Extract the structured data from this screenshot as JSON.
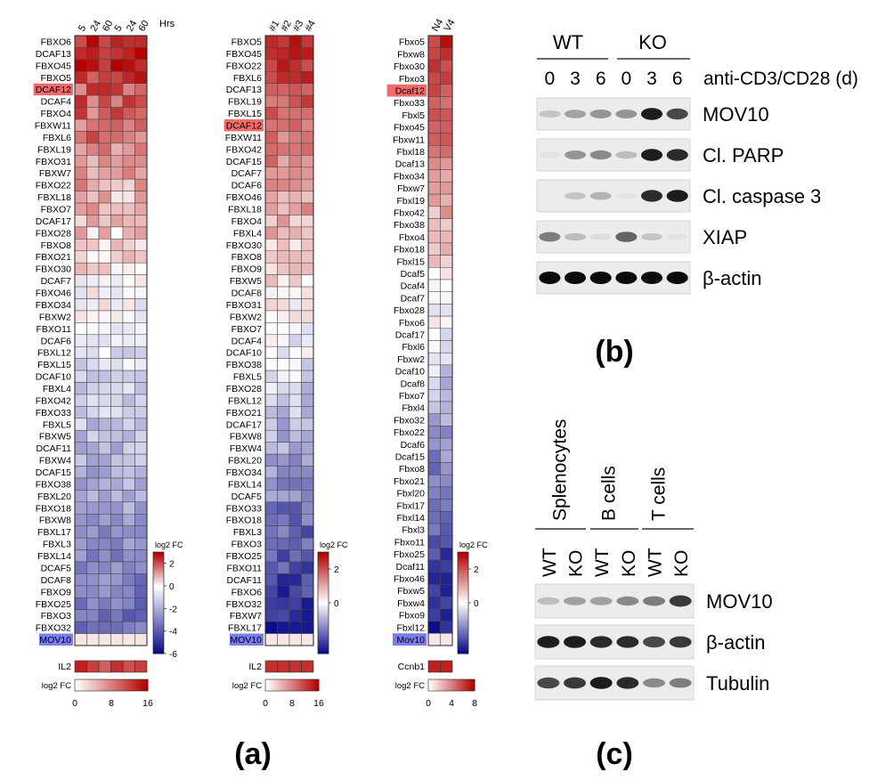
{
  "panel_labels": {
    "a": "(a)",
    "b": "(b)",
    "c": "(c)"
  },
  "colors": {
    "red": "#b30000",
    "blue": "#0d0d8a",
    "white": "#ffffff",
    "highlight_red": "#f26b6b",
    "highlight_blue": "#7b7cf0"
  },
  "chart_data": [
    {
      "type": "heatmap",
      "panel": "a1",
      "col_labels": [
        "5",
        "24",
        "60",
        "5",
        "24",
        "60"
      ],
      "col_unit": "Hrs",
      "rows": [
        "FBXO6",
        "DCAF13",
        "FBXO45",
        "FBXO5",
        "DCAF12",
        "DCAF4",
        "FBXO4",
        "FBXW11",
        "FBXL6",
        "FBXL19",
        "FBXO31",
        "FBXW7",
        "FBXO22",
        "FBXL18",
        "FBXO7",
        "DCAF17",
        "FBXO28",
        "FBXO8",
        "FBXO21",
        "FBXO30",
        "DCAF7",
        "FBXO46",
        "FBXO34",
        "FBXW2",
        "FBXO11",
        "DCAF6",
        "FBXL12",
        "FBXL15",
        "DCAF10",
        "FBXL4",
        "FBXO42",
        "FBXO33",
        "FBXL5",
        "FBXW5",
        "DCAF11",
        "FBXW4",
        "DCAF15",
        "FBXO38",
        "FBXL20",
        "FBXO18",
        "FBXW8",
        "FBXL17",
        "FBXL3",
        "FBXL14",
        "DCAF5",
        "DCAF8",
        "FBXO9",
        "FBXO25",
        "FBXO3",
        "FBXO32",
        "MOV10"
      ],
      "highlight": {
        "DCAF12": "red",
        "MOV10": "blue"
      },
      "scale": {
        "label": "log2 FC",
        "min": -6,
        "max": 3,
        "ticks": [
          "2",
          "0",
          "-2",
          "-4",
          "-6"
        ]
      },
      "il2": {
        "label": "IL2",
        "values": [
          14,
          12,
          10,
          13,
          11,
          12
        ]
      },
      "il2_scale": {
        "label": "log2 FC",
        "min": 0,
        "max": 16,
        "ticks": [
          "0",
          "8",
          "16"
        ]
      }
    },
    {
      "type": "heatmap",
      "panel": "a2",
      "col_labels": [
        "#1",
        "#2",
        "#3",
        "#4"
      ],
      "rows": [
        "FBXO5",
        "FBXO45",
        "FBXO22",
        "FBXL6",
        "DCAF13",
        "FBXL19",
        "FBXL15",
        "DCAF12",
        "FBXW11",
        "FBXO42",
        "DCAF15",
        "DCAF7",
        "DCAF6",
        "FBXO46",
        "FBXL18",
        "FBXO4",
        "FBXL4",
        "FBXO30",
        "FBXO8",
        "FBXO9",
        "FBXW5",
        "DCAF8",
        "FBXO31",
        "FBXW2",
        "FBXO7",
        "DCAF4",
        "DCAF10",
        "FBXO38",
        "FBXL5",
        "FBXO28",
        "FBXL12",
        "FBXO21",
        "DCAF17",
        "FBXW8",
        "FBXW4",
        "FBXL20",
        "FBXO34",
        "FBXL14",
        "DCAF5",
        "FBXO33",
        "FBXO18",
        "FBXL3",
        "FBXO3",
        "FBXO25",
        "FBXO11",
        "DCAF11",
        "FBXO6",
        "FBXO32",
        "FBXW7",
        "FBXL17",
        "MOV10"
      ],
      "highlight": {
        "DCAF12": "red",
        "MOV10": "blue"
      },
      "scale": {
        "label": "log2 FC",
        "min": -3,
        "max": 3,
        "ticks": [
          "2",
          "0"
        ]
      },
      "il2": {
        "label": "IL2",
        "values": [
          13,
          13,
          13,
          13
        ]
      },
      "il2_scale": {
        "label": "log2 FC",
        "min": 0,
        "max": 16,
        "ticks": [
          "0",
          "8",
          "16"
        ]
      }
    },
    {
      "type": "heatmap",
      "panel": "a3",
      "col_labels": [
        "N4",
        "V4"
      ],
      "rows": [
        "Fbxo5",
        "Fbxw8",
        "Fbxo30",
        "Fbxo3",
        "Dcaf12",
        "Fbxo33",
        "Fbxl5",
        "Fbxo45",
        "Fbxw11",
        "Fbxl18",
        "Dcaf13",
        "Fbxo34",
        "Fbxw7",
        "Fbxl19",
        "Fbxo42",
        "Fbxo38",
        "Fbxo4",
        "Fbxo18",
        "Fbxl15",
        "Dcaf5",
        "Dcaf4",
        "Dcaf7",
        "Fbxo28",
        "Fbxo6",
        "Dcaf17",
        "Fbxl6",
        "Fbxw2",
        "Dcaf10",
        "Dcaf8",
        "Fbxo7",
        "Fbxl4",
        "Fbxo32",
        "Fbxo22",
        "Dcaf6",
        "Dcaf15",
        "Fbxo8",
        "Fbxo21",
        "Fbxl20",
        "Fbxl17",
        "Fbxl14",
        "Fbxl3",
        "Fbxo11",
        "Fbxo25",
        "Dcaf11",
        "Fbxo46",
        "Fbxw5",
        "Fbxw4",
        "Fbxo9",
        "Fbxl12",
        "Mov10"
      ],
      "highlight": {
        "Dcaf12": "red",
        "Mov10": "blue"
      },
      "scale": {
        "label": "log2 FC",
        "min": -3,
        "max": 3,
        "ticks": [
          "2",
          "0"
        ]
      },
      "il2": {
        "label": "Ccnb1",
        "values": [
          7,
          7
        ]
      },
      "il2_scale": {
        "label": "log2 FC",
        "min": 0,
        "max": 8,
        "ticks": [
          "0",
          "4",
          "8"
        ]
      }
    }
  ],
  "blot_b": {
    "groups": [
      "WT",
      "KO"
    ],
    "timepoints": [
      "0",
      "3",
      "6",
      "0",
      "3",
      "6"
    ],
    "treatment": "anti-CD3/CD28 (d)",
    "bands": [
      {
        "label": "MOV10",
        "intensity": [
          0.25,
          0.45,
          0.5,
          0.5,
          0.95,
          0.8
        ]
      },
      {
        "label": "Cl. PARP",
        "intensity": [
          0.05,
          0.5,
          0.55,
          0.3,
          0.95,
          0.9
        ]
      },
      {
        "label": "Cl. caspase 3",
        "intensity": [
          0.0,
          0.25,
          0.35,
          0.05,
          0.9,
          0.95
        ]
      },
      {
        "label": "XIAP",
        "intensity": [
          0.6,
          0.3,
          0.1,
          0.7,
          0.25,
          0.05
        ]
      },
      {
        "label": "β-actin",
        "intensity": [
          1,
          1,
          1,
          1,
          1,
          1
        ]
      }
    ]
  },
  "blot_c": {
    "groups": [
      "Splenocytes",
      "B cells",
      "T cells"
    ],
    "lanes": [
      "WT",
      "KO",
      "WT",
      "KO",
      "WT",
      "KO"
    ],
    "bands": [
      {
        "label": "MOV10",
        "intensity": [
          0.3,
          0.45,
          0.45,
          0.55,
          0.6,
          0.85
        ]
      },
      {
        "label": "β-actin",
        "intensity": [
          0.95,
          0.95,
          0.9,
          0.9,
          0.8,
          0.85
        ]
      },
      {
        "label": "Tubulin",
        "intensity": [
          0.8,
          0.85,
          0.95,
          0.9,
          0.55,
          0.6
        ]
      }
    ]
  }
}
